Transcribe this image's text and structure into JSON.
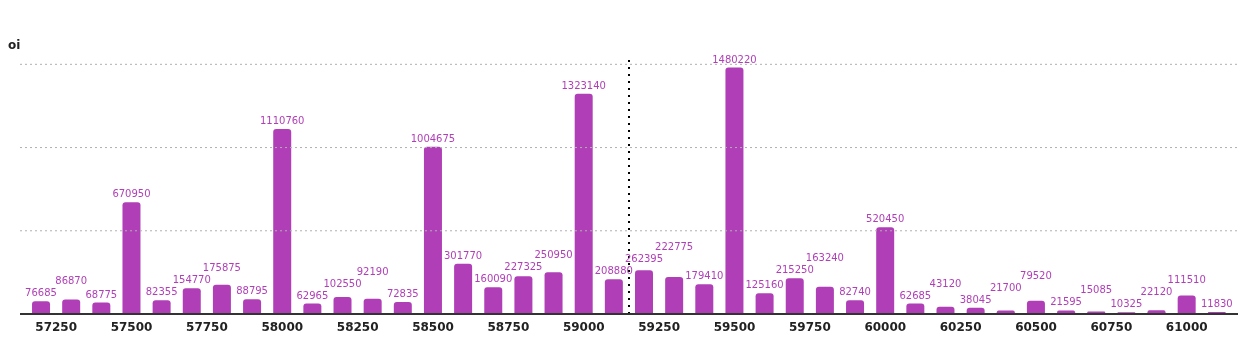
{
  "chart_data": {
    "type": "bar",
    "ylabel": "oi",
    "x": [
      57200,
      57300,
      57400,
      57500,
      57600,
      57700,
      57800,
      57900,
      58000,
      58100,
      58200,
      58300,
      58400,
      58500,
      58600,
      58700,
      58800,
      58900,
      59000,
      59100,
      59200,
      59300,
      59400,
      59500,
      59600,
      59700,
      59800,
      59900,
      60000,
      60100,
      60200,
      60300,
      60400,
      60500,
      60600,
      60700,
      60800,
      60900,
      61000,
      61100
    ],
    "series": [
      {
        "color": "#b03fb7",
        "values": [
          76685,
          86870,
          68775,
          670950,
          82355,
          154770,
          175875,
          88795,
          1110760,
          62965,
          102550,
          92190,
          72835,
          1004675,
          301770,
          160090,
          227325,
          250950,
          1323140,
          208880,
          262395,
          222775,
          179410,
          1480220,
          125160,
          215250,
          163240,
          82740,
          520450,
          62685,
          43120,
          38045,
          21700,
          79520,
          21595,
          15085,
          10325,
          22120,
          111510,
          11830
        ]
      }
    ],
    "xlim": [
      57130,
      61170
    ],
    "xticks": [
      57250,
      57500,
      57750,
      58000,
      58250,
      58500,
      58750,
      59000,
      59250,
      59500,
      59750,
      60000,
      60250,
      60500,
      60750,
      61000
    ],
    "ylim": [
      0,
      1550000
    ],
    "yticks": [
      {
        "value": 0,
        "label": null
      },
      {
        "value": 500000,
        "label": null
      },
      {
        "value": 1000000,
        "label": null
      },
      {
        "value": 1500000,
        "label": null
      }
    ],
    "tick_labels": "x",
    "grid": "y",
    "data_labels": true,
    "legend": false,
    "ref_lines": [
      {
        "axis": "x",
        "value": 59150,
        "line_style": "dotted",
        "color": "#000000"
      }
    ]
  }
}
